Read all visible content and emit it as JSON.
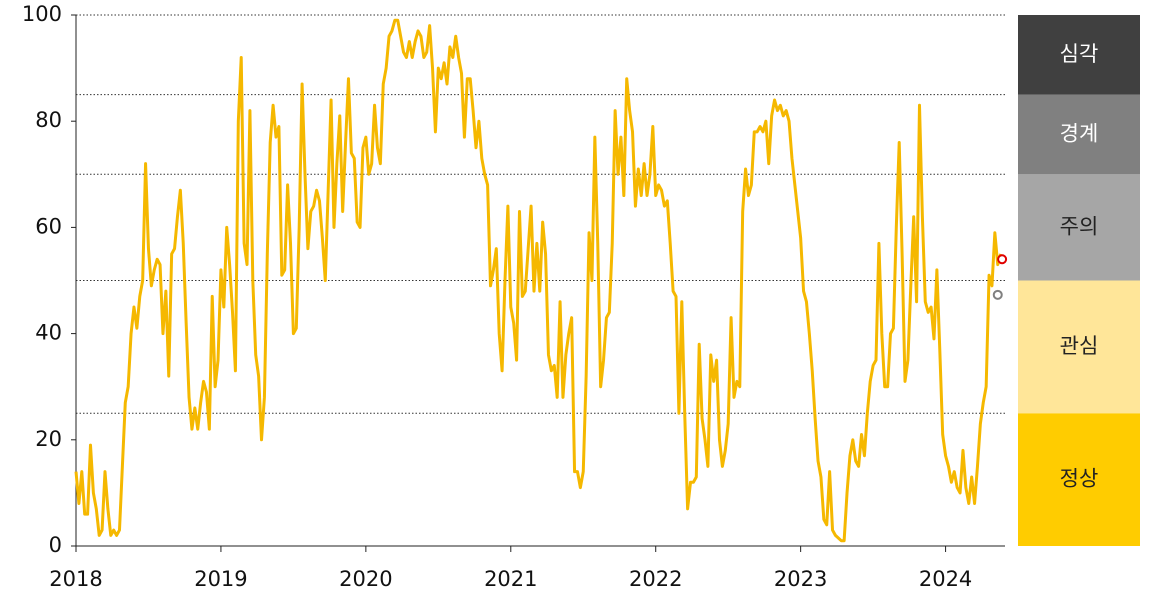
{
  "chart_data": {
    "type": "line",
    "color": "#f5b800",
    "x": [
      2018,
      2018.02,
      2018.04,
      2018.06,
      2018.08,
      2018.1,
      2018.12,
      2018.14,
      2018.16,
      2018.18,
      2018.2,
      2018.22,
      2018.24,
      2018.26,
      2018.28,
      2018.3,
      2018.32,
      2018.34,
      2018.36,
      2018.38,
      2018.4,
      2018.42,
      2018.44,
      2018.46,
      2018.48,
      2018.5,
      2018.52,
      2018.54,
      2018.56,
      2018.58,
      2018.6,
      2018.62,
      2018.64,
      2018.66,
      2018.68,
      2018.7,
      2018.72,
      2018.74,
      2018.76,
      2018.78,
      2018.8,
      2018.82,
      2018.84,
      2018.86,
      2018.88,
      2018.9,
      2018.92,
      2018.94,
      2018.96,
      2018.98,
      2019,
      2019.02,
      2019.04,
      2019.06,
      2019.08,
      2019.1,
      2019.12,
      2019.14,
      2019.16,
      2019.18,
      2019.2,
      2019.22,
      2019.24,
      2019.26,
      2019.28,
      2019.3,
      2019.32,
      2019.34,
      2019.36,
      2019.38,
      2019.4,
      2019.42,
      2019.44,
      2019.46,
      2019.48,
      2019.5,
      2019.52,
      2019.54,
      2019.56,
      2019.58,
      2019.6,
      2019.62,
      2019.64,
      2019.66,
      2019.68,
      2019.7,
      2019.72,
      2019.74,
      2019.76,
      2019.78,
      2019.8,
      2019.82,
      2019.84,
      2019.86,
      2019.88,
      2019.9,
      2019.92,
      2019.94,
      2019.96,
      2019.98,
      2020,
      2020.02,
      2020.04,
      2020.06,
      2020.08,
      2020.1,
      2020.12,
      2020.14,
      2020.16,
      2020.18,
      2020.2,
      2020.22,
      2020.24,
      2020.26,
      2020.28,
      2020.3,
      2020.32,
      2020.34,
      2020.36,
      2020.38,
      2020.4,
      2020.42,
      2020.44,
      2020.46,
      2020.48,
      2020.5,
      2020.52,
      2020.54,
      2020.56,
      2020.58,
      2020.6,
      2020.62,
      2020.64,
      2020.66,
      2020.68,
      2020.7,
      2020.72,
      2020.74,
      2020.76,
      2020.78,
      2020.8,
      2020.82,
      2020.84,
      2020.86,
      2020.88,
      2020.9,
      2020.92,
      2020.94,
      2020.96,
      2020.98,
      2021,
      2021.02,
      2021.04,
      2021.06,
      2021.08,
      2021.1,
      2021.12,
      2021.14,
      2021.16,
      2021.18,
      2021.2,
      2021.22,
      2021.24,
      2021.26,
      2021.28,
      2021.3,
      2021.32,
      2021.34,
      2021.36,
      2021.38,
      2021.4,
      2021.42,
      2021.44,
      2021.46,
      2021.48,
      2021.5,
      2021.52,
      2021.54,
      2021.56,
      2021.58,
      2021.6,
      2021.62,
      2021.64,
      2021.66,
      2021.68,
      2021.7,
      2021.72,
      2021.74,
      2021.76,
      2021.78,
      2021.8,
      2021.82,
      2021.84,
      2021.86,
      2021.88,
      2021.9,
      2021.92,
      2021.94,
      2021.96,
      2021.98,
      2022,
      2022.02,
      2022.04,
      2022.06,
      2022.08,
      2022.1,
      2022.12,
      2022.14,
      2022.16,
      2022.18,
      2022.2,
      2022.22,
      2022.24,
      2022.26,
      2022.28,
      2022.3,
      2022.32,
      2022.34,
      2022.36,
      2022.38,
      2022.4,
      2022.42,
      2022.44,
      2022.46,
      2022.48,
      2022.5,
      2022.52,
      2022.54,
      2022.56,
      2022.58,
      2022.6,
      2022.62,
      2022.64,
      2022.66,
      2022.68,
      2022.7,
      2022.72,
      2022.74,
      2022.76,
      2022.78,
      2022.8,
      2022.82,
      2022.84,
      2022.86,
      2022.88,
      2022.9,
      2022.92,
      2022.94,
      2022.96,
      2022.98,
      2023,
      2023.02,
      2023.04,
      2023.06,
      2023.08,
      2023.1,
      2023.12,
      2023.14,
      2023.16,
      2023.18,
      2023.2,
      2023.22,
      2023.24,
      2023.26,
      2023.28,
      2023.3,
      2023.32,
      2023.34,
      2023.36,
      2023.38,
      2023.4,
      2023.42,
      2023.44,
      2023.46,
      2023.48,
      2023.5,
      2023.52,
      2023.54,
      2023.56,
      2023.58,
      2023.6,
      2023.62,
      2023.64,
      2023.66,
      2023.68,
      2023.7,
      2023.72,
      2023.74,
      2023.76,
      2023.78,
      2023.8,
      2023.82,
      2023.84,
      2023.86,
      2023.88,
      2023.9,
      2023.92,
      2023.94,
      2023.96,
      2023.98,
      2024,
      2024.02,
      2024.04,
      2024.06,
      2024.08,
      2024.1,
      2024.12,
      2024.14,
      2024.16,
      2024.18,
      2024.2,
      2024.22,
      2024.24,
      2024.26,
      2024.28,
      2024.3,
      2024.32,
      2024.34,
      2024.36,
      2024.38
    ],
    "values": [
      14,
      8,
      14,
      6,
      6,
      19,
      10,
      7,
      2,
      3,
      14,
      7,
      2,
      3,
      2,
      3,
      15,
      27,
      30,
      40,
      45,
      41,
      47,
      50,
      72,
      56,
      49,
      52,
      54,
      53,
      40,
      48,
      32,
      55,
      56,
      62,
      67,
      57,
      42,
      28,
      22,
      26,
      22,
      27,
      31,
      29,
      22,
      47,
      30,
      35,
      52,
      45,
      60,
      53,
      44,
      33,
      80,
      92,
      57,
      53,
      82,
      50,
      36,
      32,
      20,
      28,
      55,
      76,
      83,
      77,
      79,
      51,
      52,
      68,
      57,
      40,
      41,
      60,
      87,
      70,
      56,
      63,
      64,
      67,
      65,
      58,
      50,
      67,
      84,
      60,
      72,
      81,
      63,
      76,
      88,
      74,
      73,
      61,
      60,
      75,
      77,
      70,
      72,
      83,
      75,
      72,
      87,
      90,
      96,
      97,
      99,
      99,
      96,
      93,
      92,
      95,
      92,
      95,
      97,
      96,
      92,
      93,
      98,
      90,
      78,
      90,
      88,
      91,
      87,
      94,
      92,
      96,
      92,
      89,
      77,
      88,
      88,
      82,
      75,
      80,
      73,
      70,
      68,
      49,
      52,
      56,
      40,
      33,
      50,
      64,
      45,
      42,
      35,
      63,
      47,
      48,
      56,
      64,
      48,
      57,
      48,
      61,
      55,
      36,
      33,
      34,
      28,
      46,
      28,
      36,
      40,
      43,
      14,
      14,
      11,
      14,
      32,
      59,
      50,
      77,
      57,
      30,
      35,
      43,
      44,
      57,
      82,
      70,
      77,
      66,
      88,
      82,
      78,
      64,
      71,
      66,
      72,
      66,
      70,
      79,
      66,
      68,
      67,
      64,
      65,
      57,
      48,
      47,
      25,
      46,
      25,
      7,
      12,
      12,
      13,
      38,
      24,
      20,
      15,
      36,
      31,
      35,
      20,
      15,
      18,
      23,
      43,
      28,
      31,
      30,
      63,
      71,
      66,
      68,
      78,
      78,
      79,
      78,
      80,
      72,
      81,
      84,
      82,
      83,
      81,
      82,
      80,
      73,
      68,
      63,
      58,
      48,
      46,
      40,
      33,
      24,
      16,
      13,
      5,
      4,
      14,
      3,
      2,
      1.5,
      1,
      1,
      10,
      17,
      20,
      16,
      15,
      21,
      17,
      25,
      31,
      34,
      35,
      57,
      40,
      30,
      30,
      40,
      41,
      60,
      76,
      55,
      31,
      35,
      49,
      62,
      46,
      83,
      62,
      46,
      44,
      45,
      39,
      52,
      37,
      21,
      17,
      15,
      12,
      14,
      11,
      10,
      18,
      11,
      8,
      13,
      8,
      15,
      23,
      27,
      30,
      51,
      49,
      59,
      53,
      55
    ],
    "points": [
      {
        "x": 2024.36,
        "y": 47.3,
        "color": "#808080"
      },
      {
        "x": 2024.39,
        "y": 54,
        "color": "#e00000"
      }
    ],
    "xlim": [
      2018,
      2024.41
    ],
    "xticks": [
      2018,
      2019,
      2020,
      2021,
      2022,
      2023,
      2024
    ],
    "ylim": [
      0,
      100
    ],
    "yticks": [
      0,
      20,
      40,
      60,
      80,
      100
    ],
    "zones": [
      {
        "label": "정상",
        "from": 0,
        "to": 25,
        "color": "#ffcc00",
        "text_color": "#222222"
      },
      {
        "label": "관심",
        "from": 25,
        "to": 50,
        "color": "#ffe699",
        "text_color": "#222222"
      },
      {
        "label": "주의",
        "from": 50,
        "to": 70,
        "color": "#a6a6a6",
        "text_color": "#222222"
      },
      {
        "label": "경계",
        "from": 70,
        "to": 85,
        "color": "#808080",
        "text_color": "#ffffff"
      },
      {
        "label": "심각",
        "from": 85,
        "to": 100,
        "color": "#404040",
        "text_color": "#ffffff"
      }
    ]
  }
}
